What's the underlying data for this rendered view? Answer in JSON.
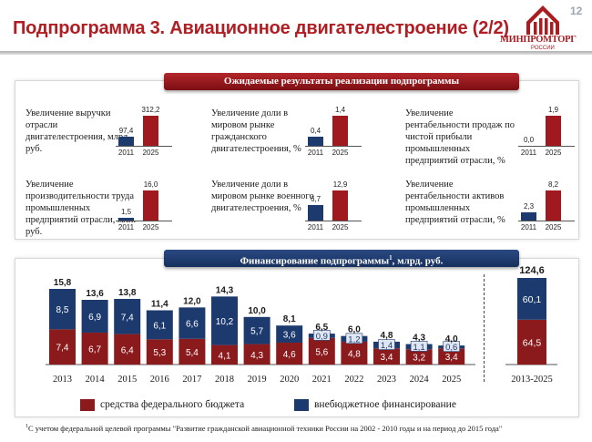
{
  "header": {
    "page_number": "12",
    "title": "Подпрограмма 3. Авиационное двигателестроение (2/2)",
    "logo_name": "МИНПРОМТОРГ",
    "logo_sub": "РОССИИ"
  },
  "results": {
    "banner": "Ожидаемые результаты реализации подпрограммы",
    "metrics": [
      {
        "label": "Увеличение выручки отрасли двигателестроения, млрд. руб.",
        "years": [
          "2011",
          "2025"
        ],
        "values": [
          "97,4",
          "312,2"
        ],
        "fractions": [
          0.31,
          1.0
        ]
      },
      {
        "label": "Увеличение доли в мировом рынке гражданского двигателестроения, %",
        "years": [
          "2011",
          "2025"
        ],
        "values": [
          "0,4",
          "1,4"
        ],
        "fractions": [
          0.29,
          1.0
        ]
      },
      {
        "label": "Увеличение рентабельности продаж по чистой прибыли промышленных предприятий отрасли, %",
        "years": [
          "2011",
          "2025"
        ],
        "values": [
          "0,0",
          "1,9"
        ],
        "fractions": [
          0.0,
          1.0
        ]
      },
      {
        "label": "Увеличение производительности труда промышленных предприятий отрасли, млн. руб.",
        "years": [
          "2011",
          "2025"
        ],
        "values": [
          "1,5",
          "16,0"
        ],
        "fractions": [
          0.09,
          1.0
        ]
      },
      {
        "label": "Увеличение доли в мировом рынке военного двигателестроения, %",
        "years": [
          "2011",
          "2025"
        ],
        "values": [
          "6,7",
          "12,9"
        ],
        "fractions": [
          0.52,
          1.0
        ]
      },
      {
        "label": "Увеличение рентабельности активов промышленных предприятий отрасли, %",
        "years": [
          "2011",
          "2025"
        ],
        "values": [
          "2,3",
          "8,2"
        ],
        "fractions": [
          0.28,
          1.0
        ]
      }
    ]
  },
  "funding": {
    "banner_main": "Финансирование подпрограммы",
    "banner_sup": "1",
    "banner_tail": ", млрд. руб.",
    "legend": [
      "средства федерального бюджета",
      "внебюджетное финансирование"
    ]
  },
  "chart_data": {
    "type": "bar",
    "stacked": true,
    "categories": [
      "2013",
      "2014",
      "2015",
      "2016",
      "2017",
      "2018",
      "2019",
      "2020",
      "2021",
      "2022",
      "2023",
      "2024",
      "2025"
    ],
    "totals": [
      "15,8",
      "13,6",
      "13,8",
      "11,4",
      "12,0",
      "14,3",
      "10,0",
      "8,1",
      "6,5",
      "6,0",
      "4,8",
      "4,3",
      "4,0"
    ],
    "series": [
      {
        "name": "средства федерального бюджета",
        "color": "#8b1a1d",
        "values": [
          7.4,
          6.7,
          6.4,
          5.3,
          5.4,
          4.1,
          4.3,
          4.6,
          5.6,
          4.8,
          3.4,
          3.2,
          3.4
        ],
        "labels": [
          "7,4",
          "6,7",
          "6,4",
          "5,3",
          "5,4",
          "4,1",
          "4,3",
          "4,6",
          "5,6",
          "4,8",
          "3,4",
          "3,2",
          "3,4"
        ]
      },
      {
        "name": "внебюджетное финансирование",
        "color": "#1d3a6e",
        "values": [
          8.5,
          6.9,
          7.4,
          6.1,
          6.6,
          10.2,
          5.7,
          3.6,
          0.9,
          1.2,
          1.4,
          1.1,
          0.6
        ],
        "labels": [
          "8,5",
          "6,9",
          "7,4",
          "6,1",
          "6,6",
          "10,2",
          "5,7",
          "3,6",
          "0,9",
          "1,2",
          "1,4",
          "1,1",
          "0,6"
        ]
      }
    ],
    "summary": {
      "category": "2013-2025",
      "total": "124,6",
      "values": [
        64.5,
        60.1
      ],
      "labels": [
        "64,5",
        "60,1"
      ]
    },
    "legend_position": "bottom"
  },
  "footnote": {
    "sup": "1",
    "text": "С учетом федеральной целевой программы \"Развитие гражданской авиационной техники России на 2002 - 2010 годы и на период до 2015 года\""
  }
}
